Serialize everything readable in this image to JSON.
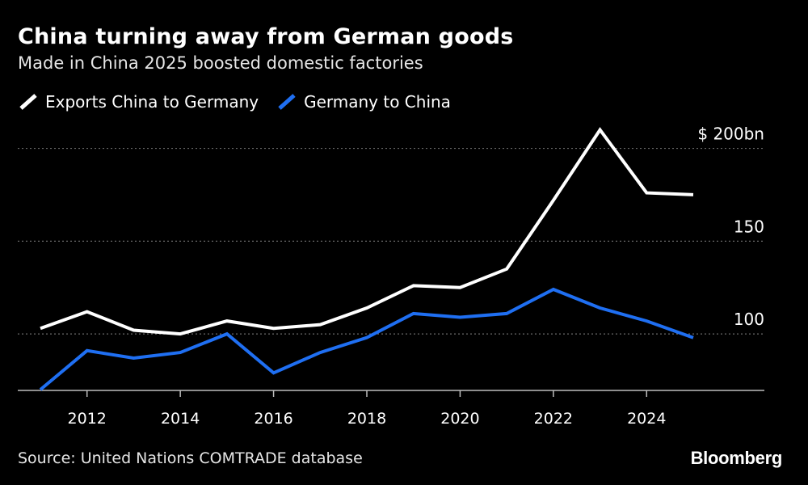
{
  "header": {
    "title": "China turning away from German goods",
    "subtitle": "Made in China 2025 boosted domestic factories"
  },
  "legend": {
    "items": [
      {
        "label": "Exports China to Germany",
        "color": "#ffffff"
      },
      {
        "label": "Germany to China",
        "color": "#1f6ff2"
      }
    ]
  },
  "footer": {
    "source": "Source: United Nations COMTRADE database",
    "brand": "Bloomberg"
  },
  "chart_data": {
    "type": "line",
    "title": "China turning away from German goods",
    "subtitle": "Made in China 2025 boosted domestic factories",
    "xlabel": "",
    "ylabel": "",
    "x": [
      2011,
      2012,
      2013,
      2014,
      2015,
      2016,
      2017,
      2018,
      2019,
      2020,
      2021,
      2022,
      2023,
      2024,
      2025
    ],
    "x_ticks": [
      2012,
      2014,
      2016,
      2018,
      2020,
      2022,
      2024
    ],
    "x_tick_labels": [
      "2012",
      "2014",
      "2016",
      "2018",
      "2020",
      "2022",
      "2024"
    ],
    "y_ticks": [
      100,
      150,
      200
    ],
    "y_tick_labels": [
      "100",
      "150",
      "$ 200bn"
    ],
    "ylim": [
      70,
      212
    ],
    "grid": "horizontal dotted",
    "legend_position": "top-left",
    "series": [
      {
        "name": "Exports China to Germany",
        "color": "#ffffff",
        "values": [
          103,
          112,
          102,
          100,
          107,
          103,
          105,
          114,
          126,
          125,
          135,
          172,
          210,
          176,
          175
        ]
      },
      {
        "name": "Germany to China",
        "color": "#1f6ff2",
        "values": [
          70,
          91,
          87,
          90,
          100,
          79,
          90,
          98,
          111,
          109,
          111,
          124,
          114,
          107,
          98
        ]
      }
    ]
  }
}
